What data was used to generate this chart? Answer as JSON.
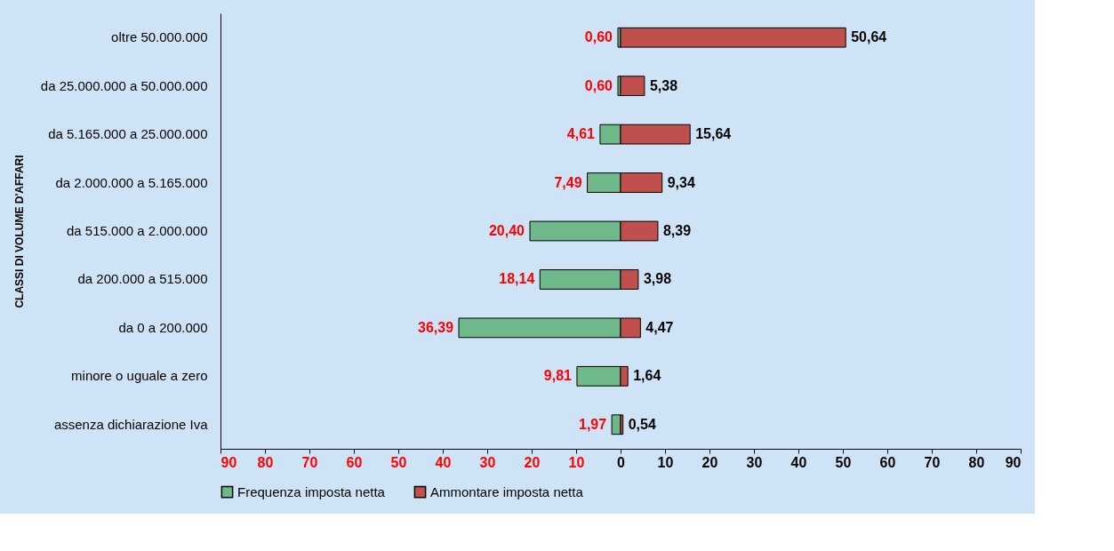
{
  "chart_data": {
    "type": "bar",
    "orientation": "horizontal",
    "ylabel": "CLASSI DI VOLUME D'AFFARI",
    "categories": [
      "oltre 50.000.000",
      "da 25.000.000 a 50.000.000",
      "da 5.165.000 a 25.000.000",
      "da 2.000.000 a 5.165.000",
      "da 515.000 a 2.000.000",
      "da 200.000 a 515.000",
      "da 0 a 200.000",
      "minore o uguale a zero",
      "assenza dichiarazione Iva"
    ],
    "series": [
      {
        "name": "Frequenza imposta netta",
        "color": "#6fb88a",
        "base": [
          -0.6,
          -0.6,
          -4.61,
          -7.49,
          -20.4,
          -18.14,
          -36.39,
          -9.81,
          -1.97
        ],
        "values": [
          0.6,
          0.6,
          4.61,
          7.49,
          20.4,
          18.14,
          36.39,
          9.81,
          1.97
        ],
        "value_labels": [
          "0,60",
          "0,60",
          "4,61",
          "7,49",
          "20,40",
          "18,14",
          "36,39",
          "9,81",
          "1,97"
        ]
      },
      {
        "name": "Ammontare imposta netta",
        "color": "#c0504d",
        "values": [
          50.64,
          5.38,
          15.64,
          9.34,
          8.39,
          3.98,
          4.47,
          1.64,
          0.54
        ],
        "value_labels": [
          "50,64",
          "5,38",
          "15,64",
          "9,34",
          "8,39",
          "3,98",
          "4,47",
          "1,64",
          "0,54"
        ]
      }
    ],
    "xlim": [
      -90,
      90
    ],
    "xticks": [
      {
        "value": -90,
        "label": "90"
      },
      {
        "value": -80,
        "label": "80"
      },
      {
        "value": -70,
        "label": "70"
      },
      {
        "value": -60,
        "label": "60"
      },
      {
        "value": -50,
        "label": "50"
      },
      {
        "value": -40,
        "label": "40"
      },
      {
        "value": -30,
        "label": "30"
      },
      {
        "value": -20,
        "label": "20"
      },
      {
        "value": -10,
        "label": "10"
      },
      0,
      10,
      20,
      30,
      40,
      50,
      60,
      70,
      80,
      90
    ],
    "grid": false,
    "legend": "bottom"
  }
}
